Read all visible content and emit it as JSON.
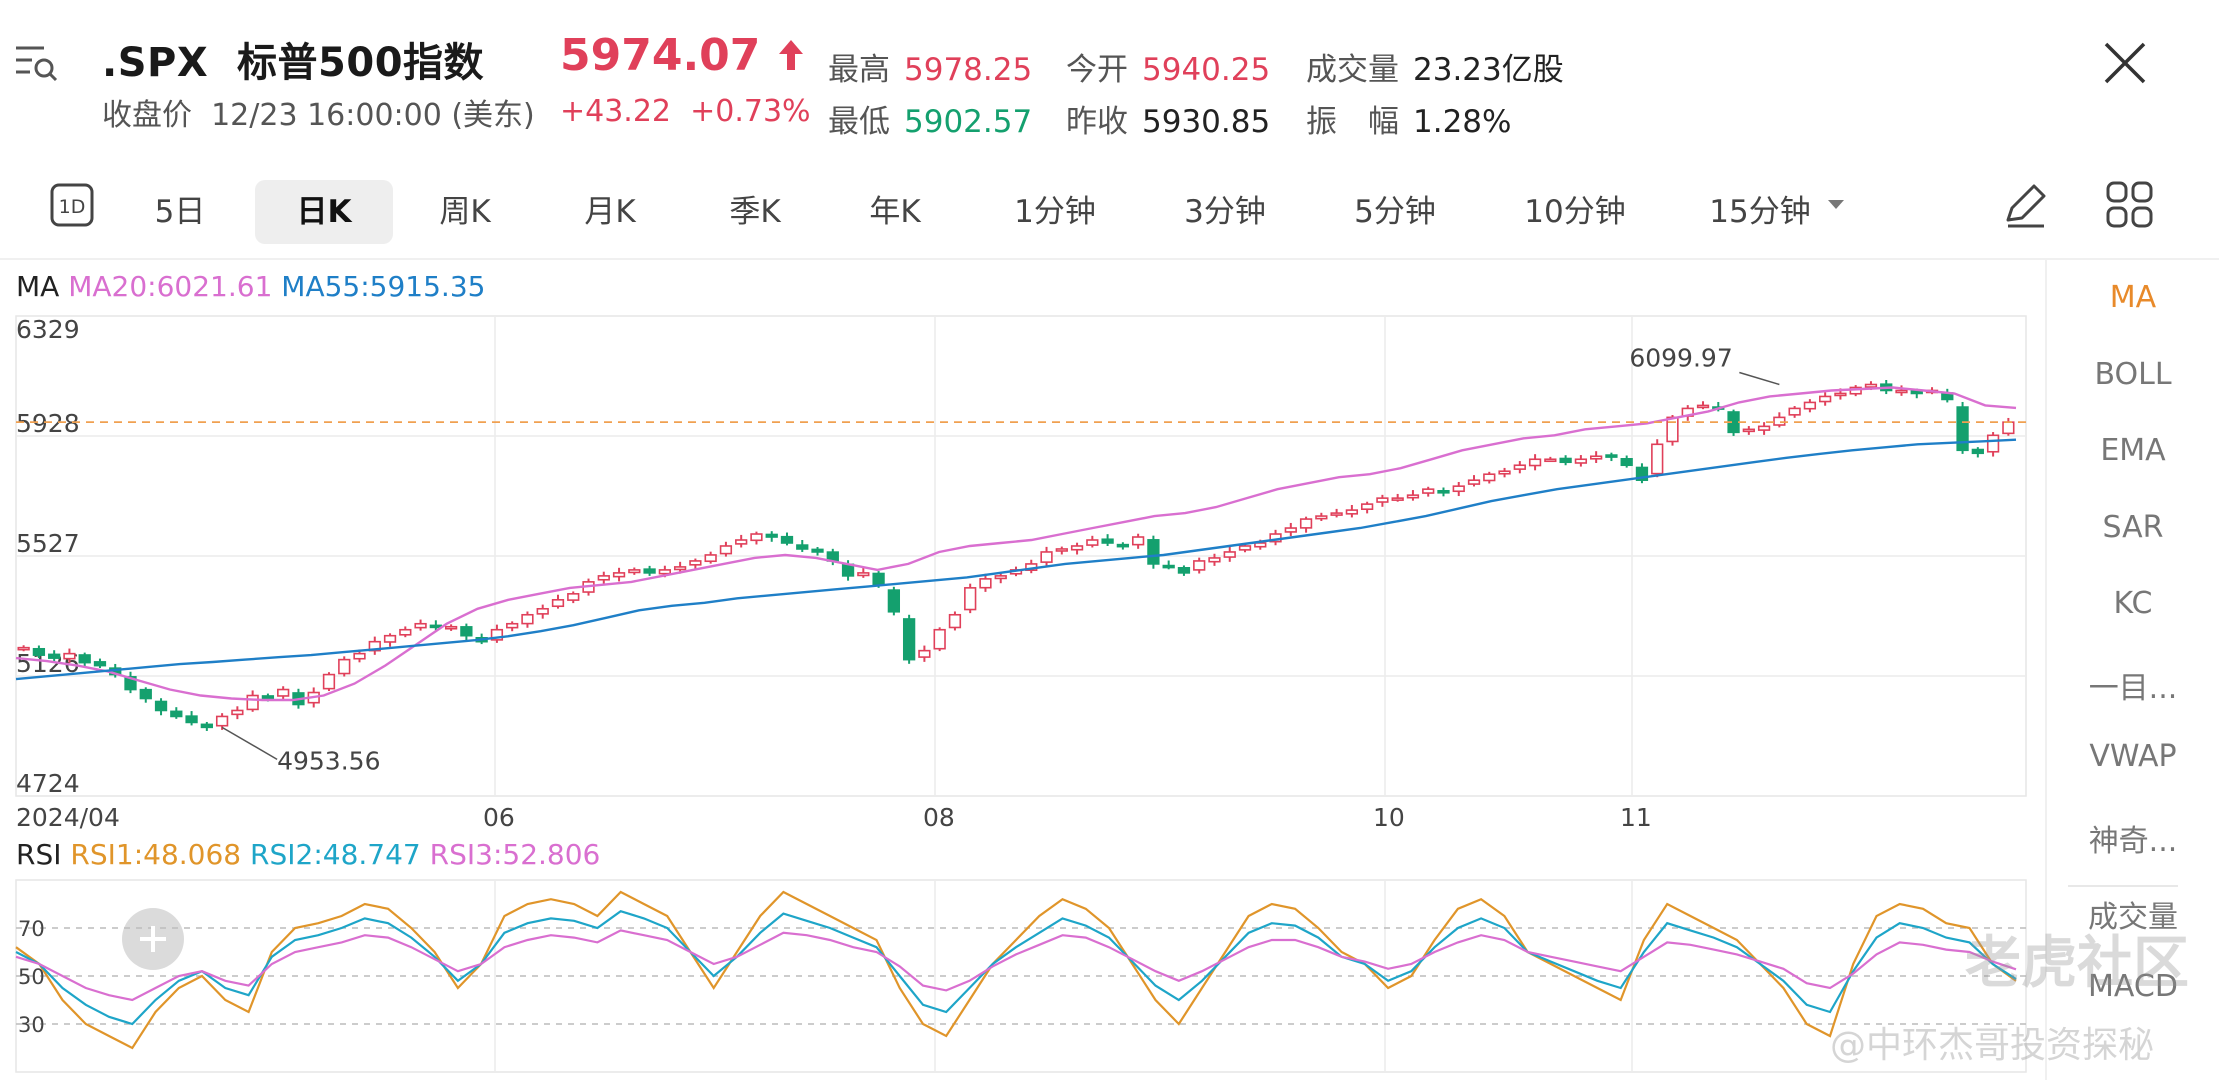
{
  "header": {
    "symbol": ".SPX",
    "name": "标普500指数",
    "close_label": "收盘价",
    "datetime": "12/23 16:00:00 (美东)",
    "price": "5974.07",
    "change": "+43.22",
    "change_pct": "+0.73%",
    "stats": {
      "high_label": "最高",
      "high": "5978.25",
      "low_label": "最低",
      "low": "5902.57",
      "open_label": "今开",
      "open": "5940.25",
      "prev_close_label": "昨收",
      "prev_close": "5930.85",
      "volume_label": "成交量",
      "volume": "23.23亿股",
      "amplitude_label": "振　幅",
      "amplitude": "1.28%"
    }
  },
  "tabs": [
    "5日",
    "日K",
    "周K",
    "月K",
    "季K",
    "年K",
    "1分钟",
    "3分钟",
    "5分钟",
    "10分钟",
    "15分钟"
  ],
  "active_tab": "日K",
  "icons": {
    "menu": "menu-list-icon",
    "close": "close-icon",
    "one_day": "1D",
    "draw": "pencil-icon",
    "layout": "grid-icon",
    "dropdown": "caret-down-icon",
    "add": "plus-icon"
  },
  "side_indicators": [
    "MA",
    "BOLL",
    "EMA",
    "SAR",
    "KC",
    "一目...",
    "VWAP",
    "神奇...",
    "成交量",
    "MACD"
  ],
  "ma_legend": {
    "label": "MA",
    "ma20": "MA20:6021.61",
    "ma55": "MA55:5915.35"
  },
  "rsi_legend": {
    "label": "RSI",
    "rsi1": "RSI1:48.068",
    "rsi2": "RSI2:48.747",
    "rsi3": "RSI3:52.806"
  },
  "watermark": {
    "brand": "老虎社区",
    "author": "@中环杰哥投资探秘"
  },
  "colors": {
    "up": "#e0405a",
    "down": "#14a06e",
    "ma20": "#d96fd0",
    "ma55": "#1f7fc7",
    "rsi1": "#e0952a",
    "rsi2": "#1ea5c8",
    "rsi3": "#d96fd0",
    "current_line": "#f0a050"
  },
  "chart_data": [
    {
      "type": "line",
      "title": "",
      "y_ticks": [
        "6329",
        "5928",
        "5527",
        "5126",
        "4724"
      ],
      "ylim": [
        4724,
        6329
      ],
      "x_ticks": [
        "2024/04",
        "06",
        "08",
        "10",
        "11"
      ],
      "annotations": [
        {
          "text": "6099.97",
          "x_index": 115,
          "value": 6099.97
        },
        {
          "text": "4953.56",
          "x_index": 13,
          "value": 4953.56
        }
      ],
      "current_price_line": 5974.07,
      "series": [
        {
          "name": "MA20",
          "values": [
            5185,
            5175,
            5160,
            5140,
            5110,
            5080,
            5060,
            5050,
            5045,
            5045,
            5060,
            5100,
            5160,
            5230,
            5300,
            5350,
            5380,
            5400,
            5420,
            5430,
            5440,
            5460,
            5480,
            5500,
            5520,
            5530,
            5520,
            5500,
            5480,
            5500,
            5540,
            5560,
            5570,
            5580,
            5600,
            5620,
            5640,
            5660,
            5670,
            5690,
            5720,
            5750,
            5770,
            5790,
            5800,
            5820,
            5850,
            5880,
            5900,
            5920,
            5930,
            5950,
            5960,
            5970,
            5990,
            6010,
            6040,
            6060,
            6070,
            6080,
            6085,
            6090,
            6080,
            6070,
            6030,
            6021.61
          ]
        },
        {
          "name": "MA55",
          "values": [
            5115,
            5125,
            5135,
            5145,
            5155,
            5165,
            5172,
            5180,
            5188,
            5195,
            5205,
            5215,
            5225,
            5235,
            5245,
            5258,
            5275,
            5295,
            5320,
            5345,
            5360,
            5370,
            5385,
            5395,
            5405,
            5415,
            5425,
            5435,
            5445,
            5455,
            5470,
            5485,
            5500,
            5510,
            5520,
            5530,
            5545,
            5560,
            5575,
            5590,
            5605,
            5620,
            5640,
            5660,
            5685,
            5710,
            5730,
            5750,
            5765,
            5780,
            5795,
            5810,
            5825,
            5840,
            5855,
            5868,
            5880,
            5890,
            5900,
            5905,
            5910,
            5915.35
          ]
        }
      ],
      "candles": [
        5220,
        5195,
        5185,
        5200,
        5170,
        5160,
        5130,
        5080,
        5050,
        5010,
        4990,
        4970,
        4953.56,
        4990,
        5010,
        5060,
        5050,
        5080,
        5030,
        5070,
        5130,
        5180,
        5200,
        5240,
        5260,
        5280,
        5300,
        5290,
        5290,
        5260,
        5240,
        5280,
        5300,
        5330,
        5350,
        5380,
        5400,
        5440,
        5460,
        5470,
        5480,
        5470,
        5480,
        5490,
        5510,
        5530,
        5560,
        5580,
        5600,
        5590,
        5570,
        5550,
        5540,
        5510,
        5460,
        5470,
        5430,
        5340,
        5180,
        5210,
        5280,
        5330,
        5420,
        5450,
        5460,
        5480,
        5500,
        5540,
        5550,
        5560,
        5580,
        5570,
        5560,
        5590,
        5500,
        5490,
        5470,
        5510,
        5520,
        5540,
        5560,
        5570,
        5600,
        5620,
        5650,
        5660,
        5670,
        5680,
        5700,
        5720,
        5720,
        5730,
        5750,
        5740,
        5760,
        5780,
        5800,
        5810,
        5830,
        5850,
        5850,
        5840,
        5850,
        5860,
        5860,
        5830,
        5780,
        5900,
        5990,
        6020,
        6030,
        6020,
        5940,
        5950,
        5960,
        5990,
        6020,
        6040,
        6060,
        6070,
        6090,
        6099.97,
        6080,
        6080,
        6070,
        6080,
        6050,
        5880,
        5870,
        5930,
        5974.07
      ]
    },
    {
      "type": "line",
      "title": "",
      "y_ticks": [
        "70",
        "50",
        "30"
      ],
      "ylim": [
        10,
        90
      ],
      "series": [
        {
          "name": "RSI1",
          "values": [
            62,
            55,
            40,
            30,
            25,
            20,
            35,
            45,
            50,
            40,
            35,
            60,
            70,
            72,
            75,
            80,
            78,
            70,
            60,
            45,
            55,
            75,
            80,
            82,
            80,
            75,
            85,
            80,
            75,
            60,
            45,
            60,
            75,
            85,
            80,
            75,
            70,
            65,
            45,
            30,
            25,
            40,
            55,
            65,
            75,
            82,
            78,
            70,
            55,
            40,
            30,
            45,
            60,
            75,
            80,
            78,
            70,
            60,
            55,
            45,
            50,
            65,
            78,
            82,
            75,
            60,
            55,
            50,
            45,
            40,
            65,
            80,
            75,
            70,
            65,
            55,
            45,
            30,
            25,
            55,
            75,
            80,
            78,
            72,
            70,
            55,
            48
          ]
        },
        {
          "name": "RSI2",
          "values": [
            60,
            55,
            45,
            38,
            33,
            30,
            40,
            48,
            52,
            45,
            42,
            58,
            65,
            67,
            70,
            74,
            72,
            66,
            58,
            48,
            55,
            68,
            72,
            74,
            73,
            70,
            77,
            74,
            70,
            60,
            50,
            58,
            68,
            76,
            73,
            70,
            66,
            62,
            50,
            38,
            35,
            45,
            55,
            62,
            68,
            74,
            71,
            66,
            56,
            46,
            40,
            48,
            58,
            68,
            72,
            71,
            66,
            58,
            55,
            48,
            52,
            62,
            70,
            74,
            70,
            60,
            56,
            52,
            48,
            45,
            60,
            72,
            69,
            66,
            62,
            55,
            48,
            38,
            35,
            52,
            66,
            72,
            70,
            66,
            64,
            55,
            48.7
          ]
        },
        {
          "name": "RSI3",
          "values": [
            58,
            55,
            50,
            45,
            42,
            40,
            45,
            50,
            52,
            48,
            46,
            55,
            60,
            62,
            64,
            67,
            66,
            62,
            57,
            52,
            55,
            62,
            65,
            67,
            66,
            64,
            69,
            67,
            65,
            60,
            55,
            58,
            63,
            68,
            67,
            65,
            62,
            60,
            54,
            46,
            44,
            48,
            54,
            59,
            63,
            67,
            66,
            62,
            57,
            52,
            48,
            52,
            57,
            62,
            65,
            65,
            62,
            58,
            56,
            53,
            55,
            60,
            64,
            67,
            65,
            60,
            58,
            56,
            54,
            52,
            58,
            64,
            63,
            61,
            59,
            56,
            53,
            47,
            45,
            51,
            59,
            64,
            63,
            61,
            60,
            56,
            52.8
          ]
        }
      ]
    }
  ]
}
